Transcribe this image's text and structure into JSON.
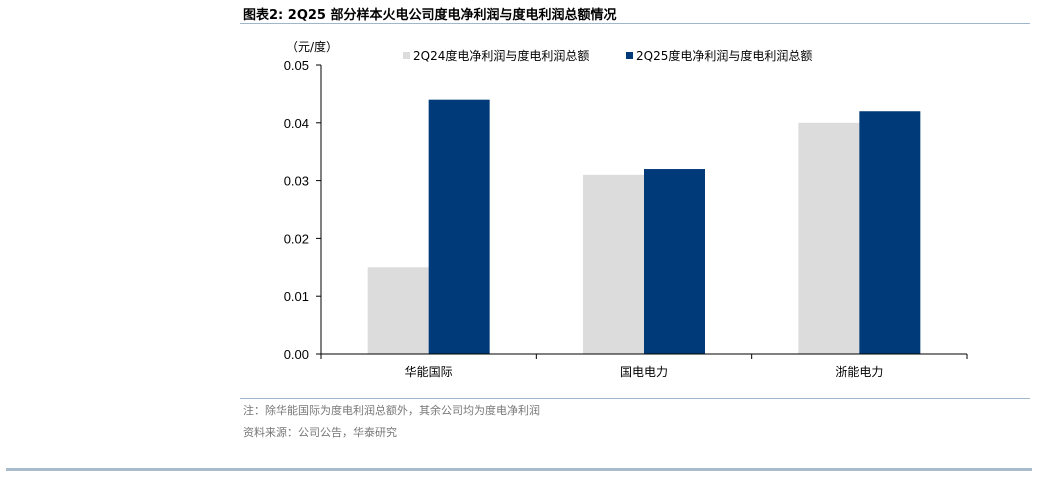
{
  "figure_title": "图表2:  2Q25 部分样本火电公司度电净利润与度电利润总额情况",
  "chart_data": {
    "type": "bar",
    "unit_label": "（元/度）",
    "categories": [
      "华能国际",
      "国电电力",
      "浙能电力"
    ],
    "series": [
      {
        "name": "2Q24度电净利润与度电利润总额",
        "values": [
          0.015,
          0.031,
          0.04
        ],
        "color": "#dcdcdc"
      },
      {
        "name": "2Q25度电净利润与度电利润总额",
        "values": [
          0.044,
          0.032,
          0.042
        ],
        "color": "#003a78"
      }
    ],
    "ylim": [
      0,
      0.05
    ],
    "yticks": [
      "0.00",
      "0.01",
      "0.02",
      "0.03",
      "0.04",
      "0.05"
    ],
    "legend_position": "top",
    "grid": false
  },
  "note": "注：除华能国际为度电利润总额外，其余公司均为度电净利润",
  "source": "资料来源：公司公告，华泰研究"
}
